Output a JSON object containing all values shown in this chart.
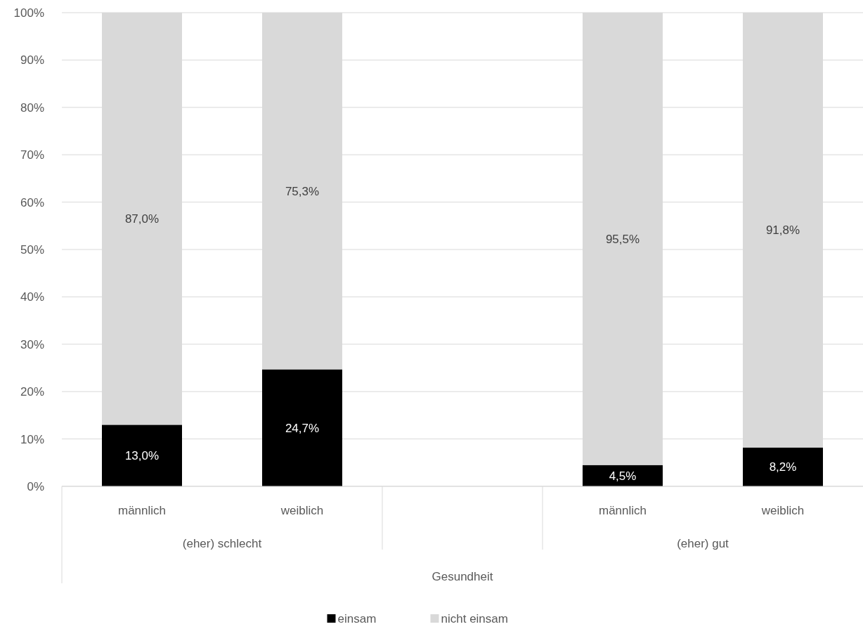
{
  "chart_data": {
    "type": "bar",
    "stacked": true,
    "categories": [
      "männlich",
      "weiblich",
      null,
      "männlich",
      "weiblich"
    ],
    "series": [
      {
        "name": "einsam",
        "color": "#000000",
        "values": [
          13.0,
          24.7,
          null,
          4.5,
          8.2
        ],
        "value_labels": [
          "13,0%",
          "24,7%",
          null,
          "4,5%",
          "8,2%"
        ]
      },
      {
        "name": "nicht einsam",
        "color": "#d9d9d9",
        "values": [
          87.0,
          75.3,
          null,
          95.5,
          91.8
        ],
        "value_labels": [
          "87,0%",
          "75,3%",
          null,
          "95,5%",
          "91,8%"
        ]
      }
    ],
    "ylim": [
      0,
      100
    ],
    "yticks": [
      {
        "value": 0,
        "label": "0%"
      },
      {
        "value": 10,
        "label": "10%"
      },
      {
        "value": 20,
        "label": "20%"
      },
      {
        "value": 30,
        "label": "30%"
      },
      {
        "value": 40,
        "label": "40%"
      },
      {
        "value": 50,
        "label": "50%"
      },
      {
        "value": 60,
        "label": "60%"
      },
      {
        "value": 70,
        "label": "70%"
      },
      {
        "value": 80,
        "label": "80%"
      },
      {
        "value": 90,
        "label": "90%"
      },
      {
        "value": 100,
        "label": "100%"
      }
    ],
    "grid": "y",
    "legend": "bottom",
    "xlabel": "Gesundheit",
    "annotations": [
      "(eher) schlecht",
      "(eher) gut"
    ]
  }
}
